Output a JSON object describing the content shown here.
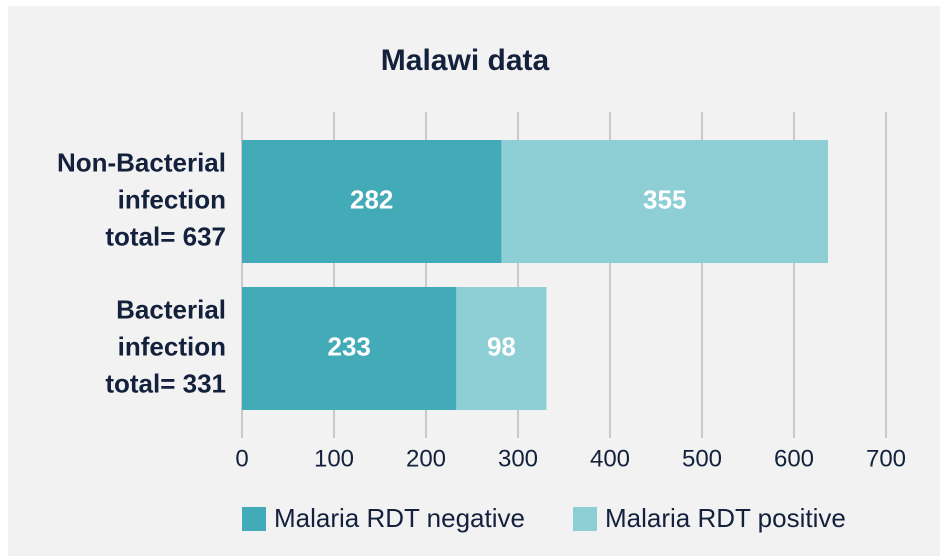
{
  "chart_data": {
    "type": "stacked-barh",
    "title": "Malawi data",
    "categories": [
      [
        "Non-Bacterial",
        "infection",
        "total= 637"
      ],
      [
        "Bacterial",
        "infection",
        "total= 331"
      ]
    ],
    "series": [
      {
        "name": "Malaria RDT negative",
        "color": "#43aab8",
        "values": [
          282,
          233
        ]
      },
      {
        "name": "Malaria RDT positive",
        "color": "#8ecfd6",
        "values": [
          355,
          98
        ]
      }
    ],
    "xlim": [
      0,
      700
    ],
    "xticks": [
      0,
      100,
      200,
      300,
      400,
      500,
      600,
      700
    ],
    "grid": true,
    "legend": "bottom"
  }
}
